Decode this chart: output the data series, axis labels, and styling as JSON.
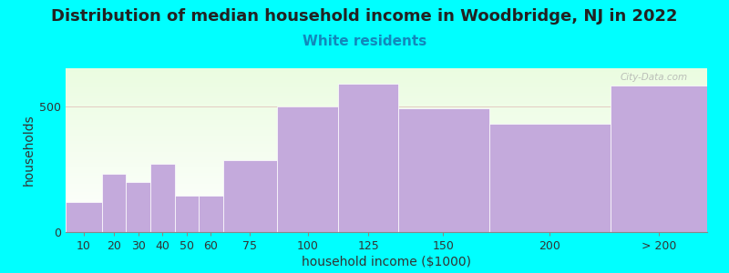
{
  "title": "Distribution of median household income in Woodbridge, NJ in 2022",
  "subtitle": "White residents",
  "xlabel": "household income ($1000)",
  "ylabel": "households",
  "background_color": "#00FFFF",
  "bar_color": "#C4AADC",
  "categories": [
    "10",
    "20",
    "30",
    "40",
    "50",
    "60",
    "75",
    "100",
    "125",
    "150",
    "200",
    "> 200"
  ],
  "values": [
    120,
    230,
    200,
    270,
    145,
    145,
    285,
    500,
    590,
    490,
    430,
    580
  ],
  "bin_edges": [
    0,
    15,
    25,
    35,
    45,
    55,
    65,
    87.5,
    112.5,
    137.5,
    175,
    225,
    265
  ],
  "ylim": [
    0,
    650
  ],
  "yticks": [
    0,
    500
  ],
  "title_fontsize": 13,
  "subtitle_fontsize": 11,
  "subtitle_color": "#1188BB",
  "axis_label_fontsize": 10,
  "tick_fontsize": 9,
  "watermark": "City-Data.com"
}
